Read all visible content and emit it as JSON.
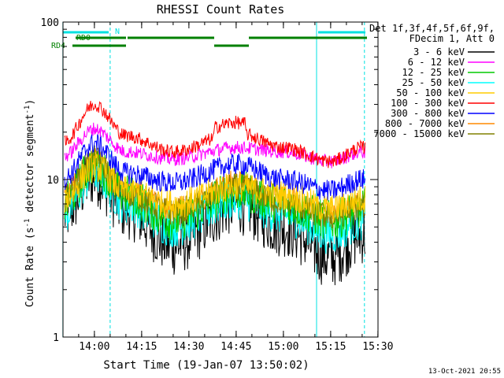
{
  "chart_data": {
    "type": "line",
    "title": "RHESSI Count Rates",
    "xlabel": "Start Time (19-Jan-07 13:50:02)",
    "ylabel_main": "Count Rate (s",
    "ylabel_sup1": "-1",
    "ylabel_mid": " detector segment",
    "ylabel_sup2": "-1",
    "ylabel_end": ")",
    "x_range": [
      "13:50:02",
      "15:30:00"
    ],
    "y_range": [
      1,
      100
    ],
    "y_scale": "log",
    "x_ticks": [
      "14:00",
      "14:15",
      "14:30",
      "14:45",
      "15:00",
      "15:15",
      "15:30"
    ],
    "y_ticks": [
      "1",
      "10",
      "100"
    ],
    "legend": {
      "header1": "Det 1f,3f,4f,5f,6f,9f,",
      "header2": "FDecim 1, Att 0",
      "placement": "top-right outside"
    },
    "series": [
      {
        "name": "3 - 6 keV",
        "color": "#000000",
        "values": [
          6.0,
          10.5,
          6.5,
          3.8,
          7.0,
          5.0,
          3.2,
          4.5
        ]
      },
      {
        "name": "6 - 12 keV",
        "color": "#ff00ff",
        "values": [
          14.0,
          21.0,
          15.0,
          13.5,
          16.0,
          15.0,
          13.0,
          15.0
        ]
      },
      {
        "name": "12 - 25 keV",
        "color": "#00cc00",
        "values": [
          7.0,
          12.5,
          8.0,
          5.5,
          8.5,
          7.0,
          5.5,
          6.5
        ]
      },
      {
        "name": "25 - 50 keV",
        "color": "#00ffff",
        "values": [
          6.0,
          11.0,
          7.0,
          5.0,
          7.5,
          6.0,
          4.5,
          5.5
        ]
      },
      {
        "name": "50 - 100 keV",
        "color": "#ffcc00",
        "values": [
          7.5,
          12.0,
          8.5,
          7.0,
          9.0,
          8.0,
          6.5,
          7.5
        ]
      },
      {
        "name": "100 - 300 keV",
        "color": "#ff0000",
        "values": [
          17.0,
          30.0,
          19.0,
          15.0,
          20.0,
          16.0,
          13.0,
          16.0
        ]
      },
      {
        "name": "300 - 800 keV",
        "color": "#0000ff",
        "values": [
          10.0,
          17.0,
          11.0,
          9.5,
          12.5,
          10.0,
          8.5,
          10.0
        ]
      },
      {
        "name": "800 - 7000 keV",
        "color": "#ff8800",
        "values": [
          8.0,
          13.0,
          8.5,
          6.5,
          9.5,
          7.5,
          6.0,
          7.0
        ]
      },
      {
        "name": "7000 - 15000 keV",
        "color": "#808000",
        "values": [
          7.5,
          13.5,
          8.2,
          6.2,
          9.0,
          7.2,
          5.8,
          6.8
        ]
      }
    ],
    "x_minutes": [
      0,
      10,
      20,
      35,
      55,
      70,
      85,
      95
    ],
    "markers": {
      "N_label": "N",
      "RD0_label": "RD0",
      "RD4_label": "RD4",
      "v_lines_min": [
        -0.03,
        14.97,
        80.5,
        95.7
      ]
    },
    "timestamp": "13-Oct-2021 20:55"
  }
}
